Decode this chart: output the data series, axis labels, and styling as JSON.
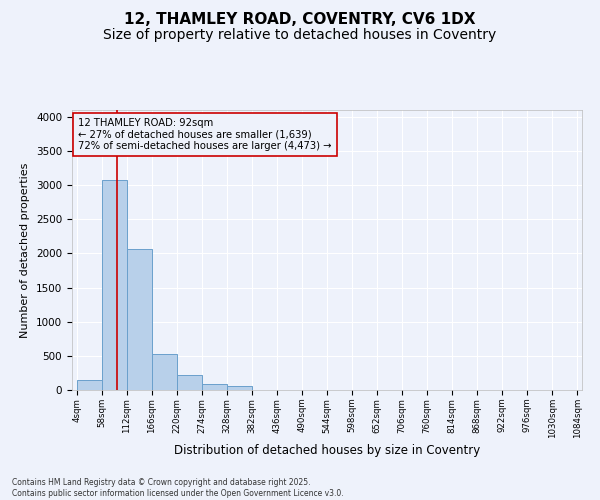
{
  "title1": "12, THAMLEY ROAD, COVENTRY, CV6 1DX",
  "title2": "Size of property relative to detached houses in Coventry",
  "xlabel": "Distribution of detached houses by size in Coventry",
  "ylabel": "Number of detached properties",
  "footer": "Contains HM Land Registry data © Crown copyright and database right 2025.\nContains public sector information licensed under the Open Government Licence v3.0.",
  "annotation_title": "12 THAMLEY ROAD: 92sqm",
  "annotation_line1": "← 27% of detached houses are smaller (1,639)",
  "annotation_line2": "72% of semi-detached houses are larger (4,473) →",
  "property_size_sqm": 92,
  "bar_edges": [
    4,
    58,
    112,
    166,
    220,
    274,
    328,
    382,
    436,
    490,
    544,
    598,
    652,
    706,
    760,
    814,
    868,
    922,
    976,
    1030,
    1084
  ],
  "bar_heights": [
    150,
    3080,
    2060,
    530,
    220,
    90,
    60,
    0,
    0,
    0,
    0,
    0,
    0,
    0,
    0,
    0,
    0,
    0,
    0,
    0
  ],
  "bar_color": "#b8d0ea",
  "bar_edge_color": "#6aa0cc",
  "vline_color": "#cc0000",
  "vline_x": 92,
  "annotation_box_color": "#cc0000",
  "ylim": [
    0,
    4100
  ],
  "yticks": [
    0,
    500,
    1000,
    1500,
    2000,
    2500,
    3000,
    3500,
    4000
  ],
  "bg_color": "#eef2fb",
  "grid_color": "#ffffff",
  "title_fontsize": 11,
  "subtitle_fontsize": 10
}
